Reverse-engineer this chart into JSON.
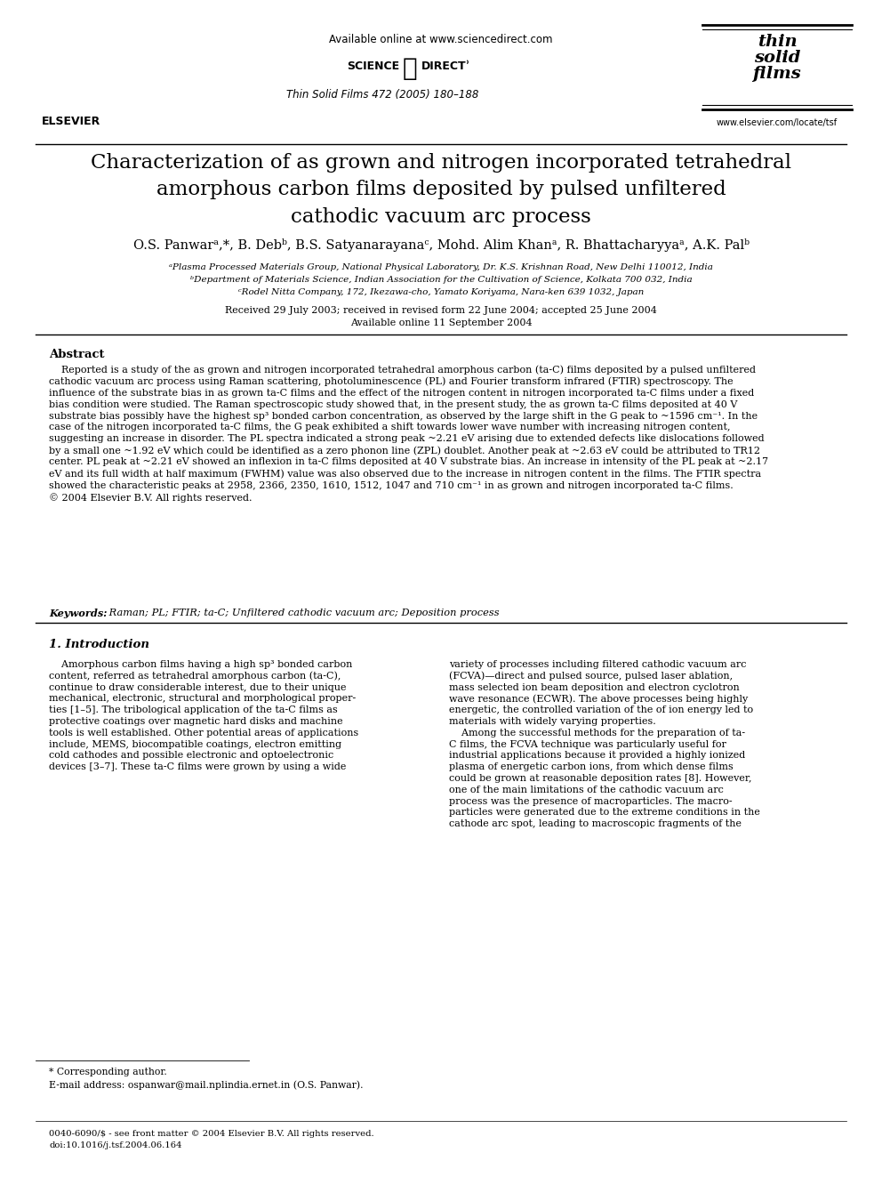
{
  "background_color": "#ffffff",
  "header_available_online": "Available online at www.sciencedirect.com",
  "journal_info": "Thin Solid Films 472 (2005) 180–188",
  "journal_website": "www.elsevier.com/locate/tsf",
  "title": "Characterization of as grown and nitrogen incorporated tetrahedral\namorphous carbon films deposited by pulsed unfiltered\ncathodic vacuum arc process",
  "authors": "O.S. Panwarᵃ,*, B. Debᵇ, B.S. Satyanarayanaᶜ, Mohd. Alim Khanᵃ, R. Bhattacharyyaᵃ, A.K. Palᵇ",
  "affil_a": "ᵃPlasma Processed Materials Group, National Physical Laboratory, Dr. K.S. Krishnan Road, New Delhi 110012, India",
  "affil_b": "ᵇDepartment of Materials Science, Indian Association for the Cultivation of Science, Kolkata 700 032, India",
  "affil_c": "ᶜRodel Nitta Company, 172, Ikezawa-cho, Yamato Koriyama, Nara-ken 639 1032, Japan",
  "received": "Received 29 July 2003; received in revised form 22 June 2004; accepted 25 June 2004",
  "available": "Available online 11 September 2004",
  "abstract_title": "Abstract",
  "abstract_text": "    Reported is a study of the as grown and nitrogen incorporated tetrahedral amorphous carbon (ta-C) films deposited by a pulsed unfiltered\ncathodic vacuum arc process using Raman scattering, photoluminescence (PL) and Fourier transform infrared (FTIR) spectroscopy. The\ninfluence of the substrate bias in as grown ta-C films and the effect of the nitrogen content in nitrogen incorporated ta-C films under a fixed\nbias condition were studied. The Raman spectroscopic study showed that, in the present study, the as grown ta-C films deposited at 40 V\nsubstrate bias possibly have the highest sp³ bonded carbon concentration, as observed by the large shift in the G peak to ~1596 cm⁻¹. In the\ncase of the nitrogen incorporated ta-C films, the G peak exhibited a shift towards lower wave number with increasing nitrogen content,\nsuggesting an increase in disorder. The PL spectra indicated a strong peak ~2.21 eV arising due to extended defects like dislocations followed\nby a small one ~1.92 eV which could be identified as a zero phonon line (ZPL) doublet. Another peak at ~2.63 eV could be attributed to TR12\ncenter. PL peak at ~2.21 eV showed an inflexion in ta-C films deposited at 40 V substrate bias. An increase in intensity of the PL peak at ~2.17\neV and its full width at half maximum (FWHM) value was also observed due to the increase in nitrogen content in the films. The FTIR spectra\nshowed the characteristic peaks at 2958, 2366, 2350, 1610, 1512, 1047 and 710 cm⁻¹ in as grown and nitrogen incorporated ta-C films.\n© 2004 Elsevier B.V. All rights reserved.",
  "keywords_label": "Keywords:",
  "keywords_text": "Raman; PL; FTIR; ta-C; Unfiltered cathodic vacuum arc; Deposition process",
  "section1_title": "1. Introduction",
  "intro_left_lines": [
    "    Amorphous carbon films having a high sp³ bonded carbon",
    "content, referred as tetrahedral amorphous carbon (ta-C),",
    "continue to draw considerable interest, due to their unique",
    "mechanical, electronic, structural and morphological proper-",
    "ties [1–5]. The tribological application of the ta-C films as",
    "protective coatings over magnetic hard disks and machine",
    "tools is well established. Other potential areas of applications",
    "include, MEMS, biocompatible coatings, electron emitting",
    "cold cathodes and possible electronic and optoelectronic",
    "devices [3–7]. These ta-C films were grown by using a wide"
  ],
  "intro_right_lines": [
    "variety of processes including filtered cathodic vacuum arc",
    "(FCVA)—direct and pulsed source, pulsed laser ablation,",
    "mass selected ion beam deposition and electron cyclotron",
    "wave resonance (ECWR). The above processes being highly",
    "energetic, the controlled variation of the of ion energy led to",
    "materials with widely varying properties.",
    "    Among the successful methods for the preparation of ta-",
    "C films, the FCVA technique was particularly useful for",
    "industrial applications because it provided a highly ionized",
    "plasma of energetic carbon ions, from which dense films",
    "could be grown at reasonable deposition rates [8]. However,",
    "one of the main limitations of the cathodic vacuum arc",
    "process was the presence of macroparticles. The macro-",
    "particles were generated due to the extreme conditions in the",
    "cathode arc spot, leading to macroscopic fragments of the"
  ],
  "footnote_star": "* Corresponding author.",
  "footnote_email": "E-mail address: ospanwar@mail.nplindia.ernet.in (O.S. Panwar).",
  "footer_issn": "0040-6090/$ - see front matter © 2004 Elsevier B.V. All rights reserved.",
  "footer_doi": "doi:10.1016/j.tsf.2004.06.164"
}
